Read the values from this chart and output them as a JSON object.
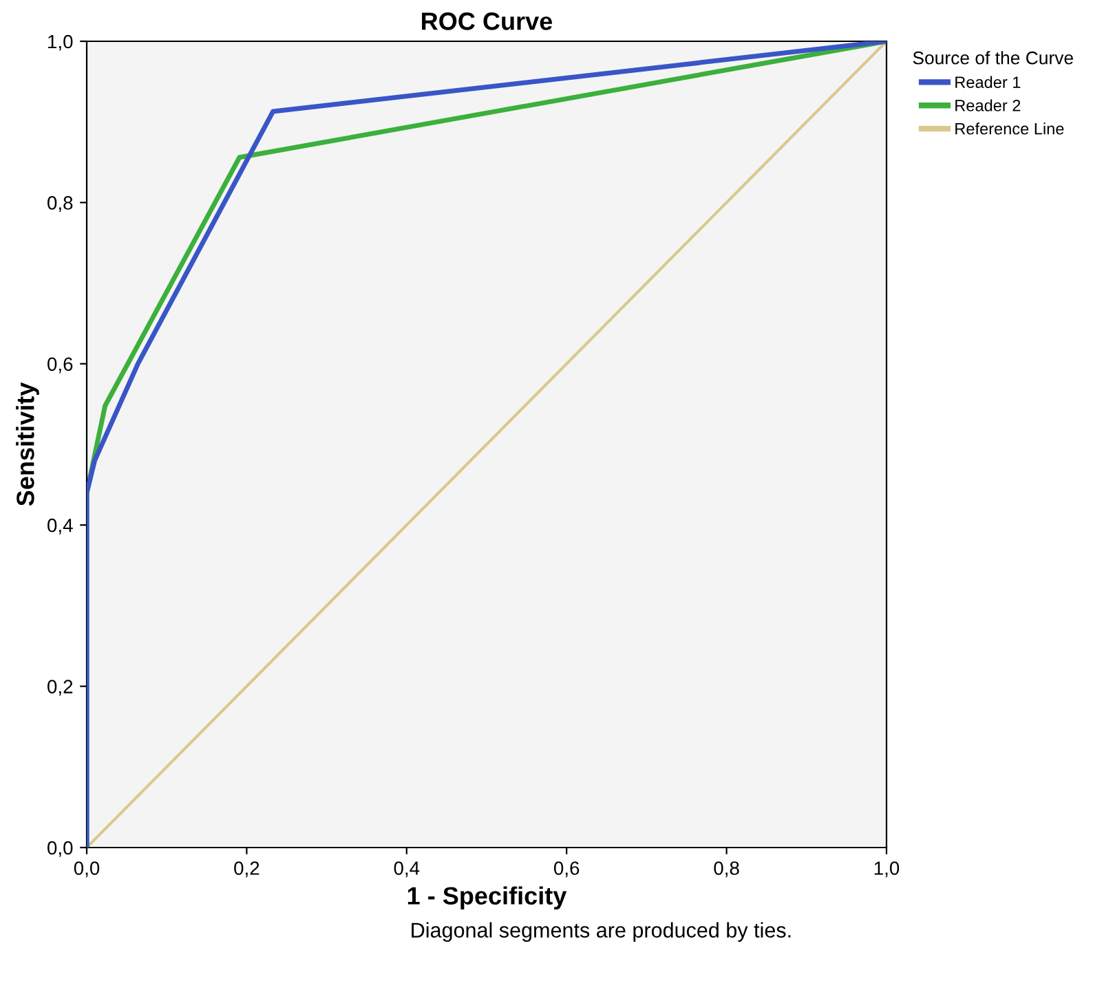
{
  "chart_data": {
    "type": "line",
    "title": "ROC Curve",
    "xlabel": "1 - Specificity",
    "ylabel": "Sensitivity",
    "legend_title": "Source of the Curve",
    "series": [
      {
        "name": "Reader 1",
        "color": "#3a55c8",
        "x": [
          0,
          0,
          0.01,
          0.064,
          0.233,
          1
        ],
        "values": [
          0,
          0.44,
          0.48,
          0.6,
          0.913,
          1
        ]
      },
      {
        "name": "Reader 2",
        "color": "#3cb03c",
        "x": [
          0,
          0,
          0.023,
          0.191,
          1
        ],
        "values": [
          0,
          0.44,
          0.548,
          0.856,
          1
        ]
      },
      {
        "name": "Reference Line",
        "color": "#d9c98c",
        "x": [
          0,
          1
        ],
        "values": [
          0,
          1
        ]
      }
    ],
    "xlim": [
      0,
      1
    ],
    "ylim": [
      0,
      1
    ],
    "xticks": [
      {
        "value": 0,
        "label": "0,0"
      },
      {
        "value": 0.2,
        "label": "0,2"
      },
      {
        "value": 0.4,
        "label": "0,4"
      },
      {
        "value": 0.6,
        "label": "0,6"
      },
      {
        "value": 0.8,
        "label": "0,8"
      },
      {
        "value": 1,
        "label": "1,0"
      }
    ],
    "yticks": [
      {
        "value": 0,
        "label": "0,0"
      },
      {
        "value": 0.2,
        "label": "0,2"
      },
      {
        "value": 0.4,
        "label": "0,4"
      },
      {
        "value": 0.6,
        "label": "0,6"
      },
      {
        "value": 0.8,
        "label": "0,8"
      },
      {
        "value": 1,
        "label": "1,0"
      }
    ],
    "annotations": [
      "Diagonal segments are produced by ties."
    ],
    "grid": false,
    "legend": "right",
    "marker": "none",
    "line_style": "solid"
  }
}
